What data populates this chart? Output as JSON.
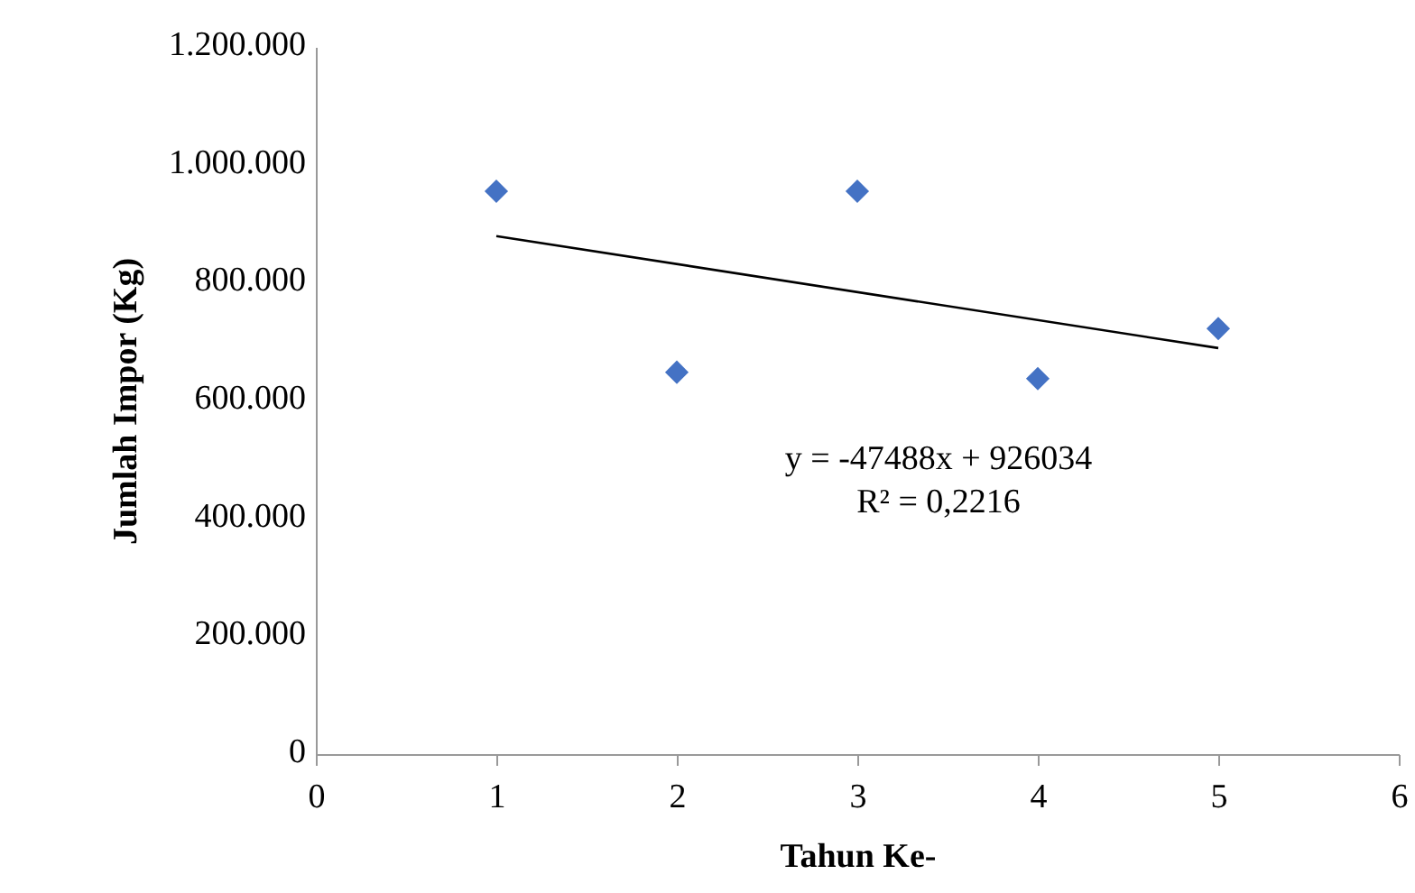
{
  "chart_data": {
    "type": "scatter",
    "xlabel": "Tahun Ke-",
    "ylabel": "Jumlah Impor (Kg)",
    "x": [
      1,
      2,
      3,
      4,
      5
    ],
    "series": [
      {
        "color": "#4472c4",
        "marker": "diamond",
        "values": [
          955000,
          648000,
          955000,
          637000,
          722000
        ]
      },
      {
        "type": "line",
        "color": "#000000",
        "x": [
          1,
          5
        ],
        "values": [
          879000,
          689000
        ]
      }
    ],
    "xlim": [
      0,
      6
    ],
    "xticks": [
      0,
      1,
      2,
      3,
      4,
      5,
      6
    ],
    "ylim": [
      0,
      1200000
    ],
    "yticks": [
      {
        "value": 0,
        "label": "0"
      },
      {
        "value": 200000,
        "label": "200.000"
      },
      {
        "value": 400000,
        "label": "400.000"
      },
      {
        "value": 600000,
        "label": "600.000"
      },
      {
        "value": 800000,
        "label": "800.000"
      },
      {
        "value": 1000000,
        "label": "1.000.000"
      },
      {
        "value": 1200000,
        "label": "1.200.000"
      }
    ],
    "grid": false,
    "annotations": [
      "y = -47488x + 926034",
      "R² = 0,2216"
    ]
  }
}
